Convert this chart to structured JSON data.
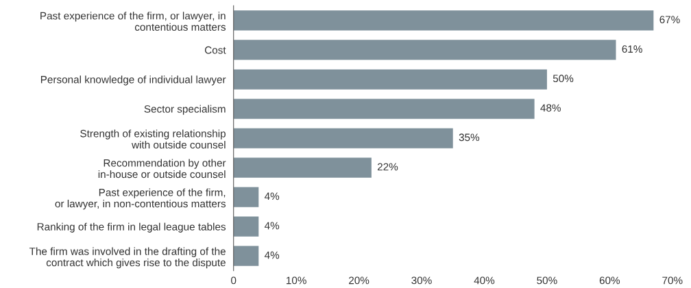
{
  "chart_data": {
    "type": "bar",
    "orientation": "horizontal",
    "categories": [
      "Past experience of the firm, or lawyer, in\ncontentious matters",
      "Cost",
      "Personal knowledge of individual lawyer",
      "Sector specialism",
      "Strength of existing relationship\nwith outside counsel",
      "Recommendation by other\nin-house or outside counsel",
      "Past experience of the firm,\nor lawyer, in non-contentious matters",
      "Ranking of the firm in legal league tables",
      "The firm was involved in the drafting of the\ncontract which gives rise to the dispute"
    ],
    "values": [
      67,
      61,
      50,
      48,
      35,
      22,
      4,
      4,
      4
    ],
    "value_labels": [
      "67%",
      "61%",
      "50%",
      "48%",
      "35%",
      "22%",
      "4%",
      "4%",
      "4%"
    ],
    "color": "#7f919b",
    "xlim": [
      0,
      70
    ],
    "xticks": [
      0,
      {
        "value": 10,
        "label": "10%"
      },
      {
        "value": 20,
        "label": "20%"
      },
      {
        "value": 30,
        "label": "30%"
      },
      {
        "value": 40,
        "label": "40%"
      },
      {
        "value": 50,
        "label": "50%"
      },
      {
        "value": 60,
        "label": "60%"
      },
      {
        "value": 70,
        "label": "70%"
      }
    ],
    "grid": false,
    "legend": false
  }
}
